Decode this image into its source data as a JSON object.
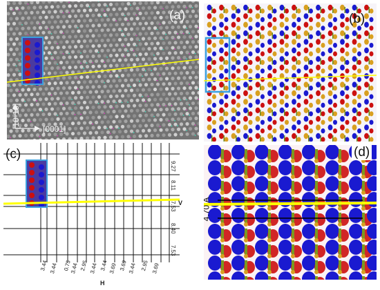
{
  "panels": {
    "a": {
      "label": "(a)",
      "direction_vertical": "[10-10]",
      "direction_horizontal": "[0001]"
    },
    "b": {
      "label": "(b)"
    },
    "c": {
      "label": "(c)",
      "horizontal_spacings": [
        "3.44",
        "3.44",
        "0.75",
        "3.44",
        "2.95",
        "3.44",
        "3.44",
        "3.69",
        "3.69",
        "3.44",
        "2.95",
        "3.69"
      ],
      "vertical_spacings": [
        "9.27",
        "8.11",
        "7.53",
        "8.40",
        "7.53"
      ],
      "h_axis_letter": "H",
      "v_axis_letter": "V"
    },
    "d": {
      "label": "(d)",
      "measurement": "4.70 Å"
    }
  },
  "colors": {
    "highlight_line": "#ffff00",
    "selection_box": "#3aa0e0",
    "atom_blue": "#1a1ad0",
    "atom_red": "#cc1010",
    "atom_gold": "#d8a020"
  }
}
